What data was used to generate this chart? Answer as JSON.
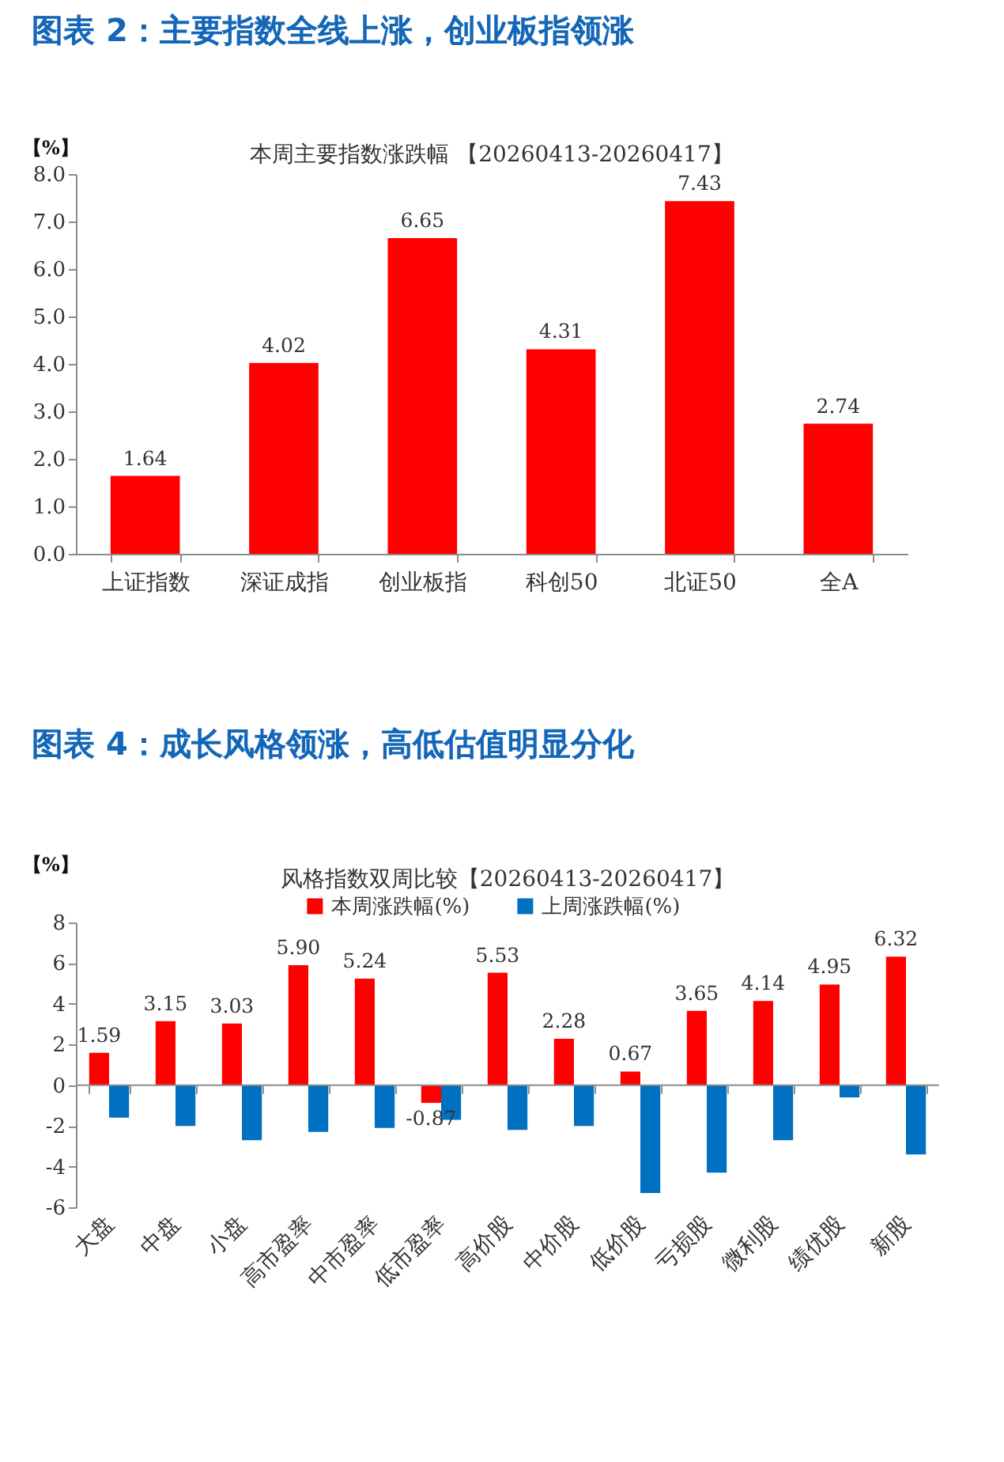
{
  "chart_data": [
    {
      "type": "bar",
      "title": "图表 2：主要指数全线上涨，创业板指领涨",
      "subtitle": "本周主要指数涨跌幅 【20260413-20260417】",
      "ylabel": "【%】",
      "categories": [
        "上证指数",
        "深证成指",
        "创业板指",
        "科创50",
        "北证50",
        "全A"
      ],
      "values": [
        1.64,
        4.02,
        6.65,
        4.31,
        7.43,
        2.74
      ],
      "color": "#ff0000",
      "ylim": [
        0,
        8
      ],
      "yticks": [
        {
          "value": 0,
          "label": "0.0"
        },
        {
          "value": 1,
          "label": "1.0"
        },
        {
          "value": 2,
          "label": "2.0"
        },
        {
          "value": 3,
          "label": "3.0"
        },
        {
          "value": 4,
          "label": "4.0"
        },
        {
          "value": 5,
          "label": "5.0"
        },
        {
          "value": 6,
          "label": "6.0"
        },
        {
          "value": 7,
          "label": "7.0"
        },
        {
          "value": 8,
          "label": "8.0"
        }
      ],
      "data_labels": true,
      "grid": false
    },
    {
      "type": "bar",
      "title": "图表 4：成长风格领涨，高低估值明显分化",
      "subtitle": "风格指数双周比较【20260413-20260417】",
      "ylabel": "【%】",
      "categories": [
        "大盘",
        "中盘",
        "小盘",
        "高市盈率",
        "中市盈率",
        "低市盈率",
        "高价股",
        "中价股",
        "低价股",
        "亏损股",
        "微利股",
        "绩优股",
        "新股"
      ],
      "series": [
        {
          "name": "本周涨跌幅(%)",
          "color": "#ff0000",
          "values": [
            1.59,
            3.15,
            3.03,
            5.9,
            5.24,
            -0.87,
            5.53,
            2.28,
            0.67,
            3.65,
            4.14,
            4.95,
            6.32
          ],
          "value_labels": [
            "1.59",
            "3.15",
            "3.03",
            "5.90",
            "5.24",
            "-0.87",
            "5.53",
            "2.28",
            "0.67",
            "3.65",
            "4.14",
            "4.95",
            "6.32"
          ]
        },
        {
          "name": "上周涨跌幅(%)",
          "color": "#0070c0",
          "values": [
            -1.6,
            -2.0,
            -2.7,
            -2.3,
            -2.1,
            -1.7,
            -2.2,
            -2.0,
            -5.3,
            -4.3,
            -2.7,
            -0.6,
            -3.4
          ]
        }
      ],
      "ylim": [
        -6,
        8
      ],
      "yticks": [
        -6,
        -4,
        -2,
        0,
        2,
        4,
        6,
        8
      ],
      "ref_lines": [
        {
          "axis": "y",
          "value": 0,
          "color": "#8c8c8c"
        }
      ],
      "legend": "top",
      "grid": false
    }
  ]
}
